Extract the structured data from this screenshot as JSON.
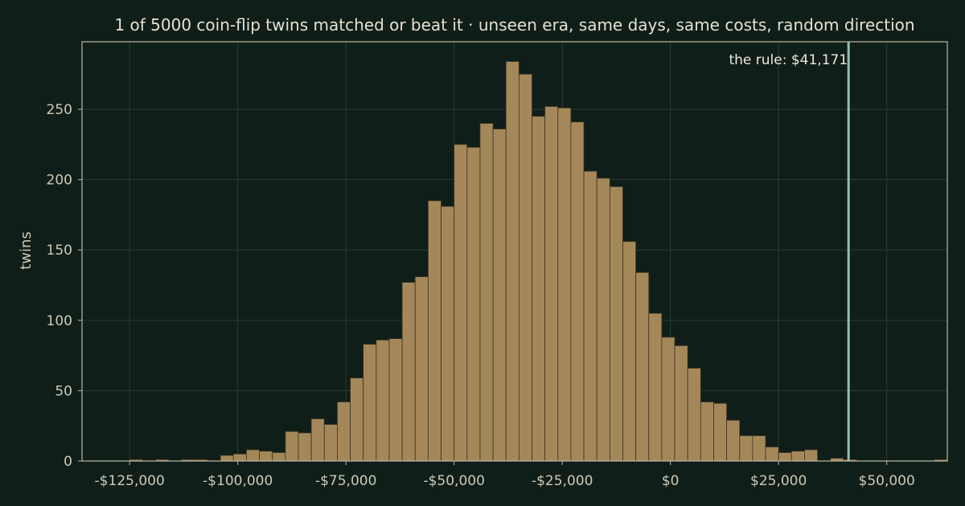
{
  "chart_data": {
    "type": "bar",
    "title": "1 of 5000 coin-flip twins matched or beat it  ·  unseen era, same days, same costs, random direction",
    "xlabel": "",
    "ylabel": "twins",
    "xlim": [
      -136000,
      64000
    ],
    "ylim": [
      0,
      298
    ],
    "grid": true,
    "x_ticks": [
      -125000,
      -100000,
      -75000,
      -50000,
      -25000,
      0,
      25000,
      50000
    ],
    "x_tick_labels": [
      "-$125,000",
      "-$100,000",
      "-$75,000",
      "-$50,000",
      "-$25,000",
      "$0",
      "$25,000",
      "$50,000"
    ],
    "y_ticks": [
      0,
      50,
      100,
      150,
      200,
      250
    ],
    "y_tick_labels": [
      "0",
      "50",
      "100",
      "150",
      "200",
      "250"
    ],
    "bin_width": 3000,
    "bin_edges_start": -125000,
    "counts": [
      1,
      0,
      1,
      0,
      1,
      1,
      0,
      4,
      5,
      8,
      7,
      6,
      21,
      20,
      30,
      26,
      42,
      59,
      83,
      86,
      87,
      127,
      131,
      185,
      181,
      225,
      223,
      240,
      236,
      284,
      275,
      245,
      252,
      251,
      241,
      206,
      201,
      195,
      156,
      134,
      105,
      88,
      82,
      66,
      42,
      41,
      29,
      18,
      18,
      10,
      6,
      7,
      8,
      0,
      2,
      1,
      0,
      0,
      0,
      0,
      0,
      0,
      1
    ],
    "bar_color": "#a5885a",
    "highlight": {
      "value": 41171,
      "label": "the rule: $41,171",
      "color": "#8fc3aa"
    }
  }
}
